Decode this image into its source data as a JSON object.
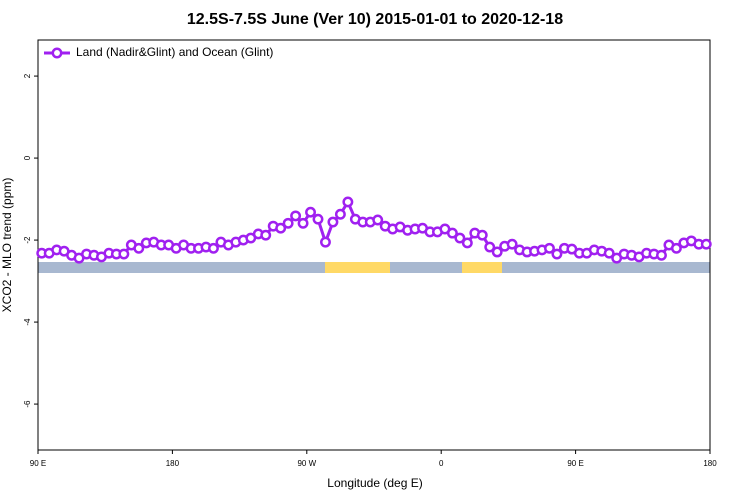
{
  "chart_data": {
    "type": "line",
    "title": "12.5S-7.5S June (Ver 10)   2015-01-01 to 2020-12-18",
    "x_label": "Longitude (deg E)",
    "y_label": "XCO2 - MLO trend (ppm)",
    "legend_position": "top-left",
    "xlim": [
      90,
      540
    ],
    "xticks": [
      {
        "value": 90,
        "label": "90 E"
      },
      180,
      {
        "value": 270,
        "label": "90 W"
      },
      {
        "value": 360,
        "label": "0"
      },
      {
        "value": 450,
        "label": "90 E"
      },
      {
        "value": 540,
        "label": "180"
      }
    ],
    "ylim": [
      -7.12,
      2.88
    ],
    "yticks": [
      2,
      0,
      -2,
      -4,
      -6
    ],
    "x": [
      92.5,
      97.5,
      102.5,
      107.5,
      112.5,
      117.5,
      122.5,
      127.5,
      132.5,
      137.5,
      142.5,
      147.5,
      152.5,
      157.5,
      162.5,
      167.5,
      172.5,
      177.5,
      182.5,
      187.5,
      192.5,
      197.5,
      202.5,
      207.5,
      212.5,
      217.5,
      222.5,
      227.5,
      232.5,
      237.5,
      242.5,
      247.5,
      252.5,
      257.5,
      262.5,
      267.5,
      272.5,
      277.5,
      282.5,
      287.5,
      292.5,
      297.5,
      302.5,
      307.5,
      312.5,
      317.5,
      322.5,
      327.5,
      332.5,
      337.5,
      342.5,
      347.5,
      352.5,
      357.5,
      362.5,
      367.5,
      372.5,
      377.5,
      382.5,
      387.5,
      392.5,
      397.5,
      402.5,
      407.5,
      412.5,
      417.5,
      422.5,
      427.5,
      432.5,
      437.5,
      442.5,
      447.5,
      452.5,
      457.5,
      462.5,
      467.5,
      472.5,
      477.5,
      482.5,
      487.5,
      492.5,
      497.5,
      502.5,
      507.5,
      512.5,
      517.5,
      522.5,
      527.5,
      532.5,
      537.5
    ],
    "series": [
      {
        "name": "Land (Nadir&Glint) and Ocean (Glint)",
        "color": "#a020f0",
        "values": [
          -2.32,
          -2.32,
          -2.24,
          -2.27,
          -2.37,
          -2.44,
          -2.34,
          -2.37,
          -2.41,
          -2.32,
          -2.34,
          -2.34,
          -2.12,
          -2.2,
          -2.07,
          -2.05,
          -2.12,
          -2.12,
          -2.2,
          -2.12,
          -2.2,
          -2.2,
          -2.17,
          -2.2,
          -2.05,
          -2.12,
          -2.05,
          -2.0,
          -1.95,
          -1.85,
          -1.88,
          -1.66,
          -1.71,
          -1.59,
          -1.41,
          -1.59,
          -1.32,
          -1.49,
          -2.05,
          -1.56,
          -1.37,
          -1.07,
          -1.49,
          -1.56,
          -1.56,
          -1.51,
          -1.66,
          -1.73,
          -1.68,
          -1.76,
          -1.73,
          -1.71,
          -1.8,
          -1.8,
          -1.73,
          -1.83,
          -1.95,
          -2.07,
          -1.83,
          -1.88,
          -2.17,
          -2.29,
          -2.15,
          -2.1,
          -2.24,
          -2.29,
          -2.27,
          -2.24,
          -2.2,
          -2.34,
          -2.2,
          -2.22,
          -2.32,
          -2.32,
          -2.24,
          -2.27,
          -2.32,
          -2.44,
          -2.34,
          -2.37,
          -2.41,
          -2.32,
          -2.34,
          -2.37,
          -2.12,
          -2.2,
          -2.07,
          -2.02,
          -2.1,
          -2.1
        ]
      }
    ]
  }
}
